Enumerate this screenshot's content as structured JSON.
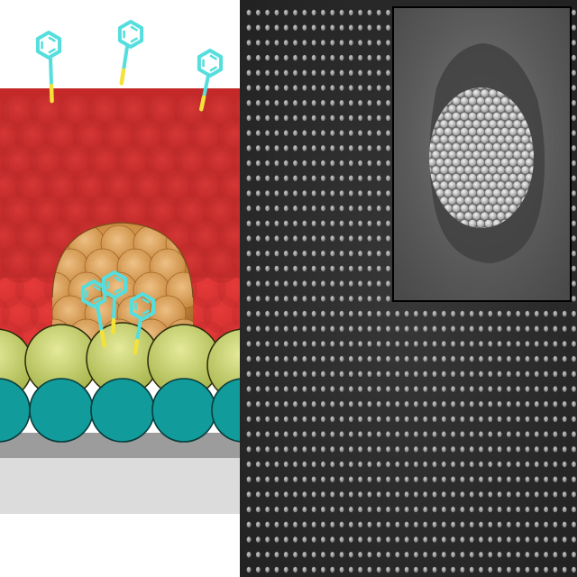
{
  "figure": {
    "left_panel": {
      "kind": "schematic",
      "colors": {
        "substrate": "#c9c9c9",
        "substrate_dark": "#9a9a9a",
        "particles": "#119b9b",
        "particle_outline": "#0a3d3d",
        "anchor_shell": "#b9c76a",
        "resin_top": "#c92a2a",
        "resin_lower": "#e83838",
        "dome": "#d59c55",
        "molecule": "#55dede",
        "linker": "#f4e23a"
      }
    },
    "right_panel": {
      "kind": "sem-micrograph",
      "colors": {
        "background": "#2a2a2a",
        "dots": "#c8c8c8",
        "inset_border": "#000000",
        "inset_background": "#5c5c5c",
        "cluster_spheres": "#e6e6e6"
      }
    }
  }
}
